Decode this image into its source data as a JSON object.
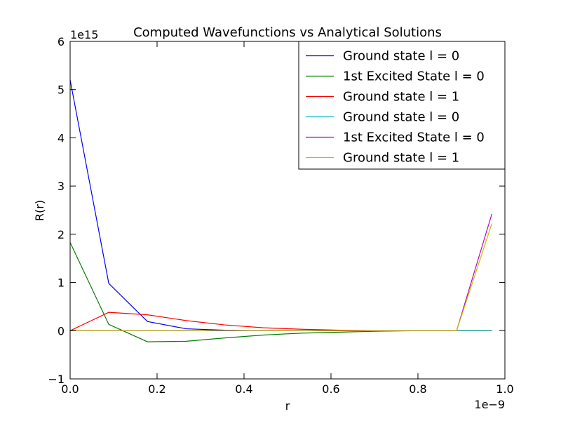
{
  "chart_data": {
    "type": "line",
    "title": "Computed Wavefunctions vs Analytical Solutions",
    "xlabel": "r",
    "ylabel": "R(r)",
    "x_offset_label": "1e−9",
    "y_offset_label": "1e15",
    "xlim": [
      0,
      1.0
    ],
    "ylim": [
      -1,
      6
    ],
    "x_ticks": [
      0.0,
      0.2,
      0.4,
      0.6,
      0.8,
      1.0
    ],
    "x_tick_labels": [
      "0.0",
      "0.2",
      "0.4",
      "0.6",
      "0.8",
      "1.0"
    ],
    "y_ticks": [
      -1,
      0,
      1,
      2,
      3,
      4,
      5,
      6
    ],
    "y_tick_labels": [
      "−1",
      "0",
      "1",
      "2",
      "3",
      "4",
      "5",
      "6"
    ],
    "grid": false,
    "legend_position": "top-right",
    "series": [
      {
        "name": "Ground state l = 0",
        "color": "#0000ff",
        "x": [
          0.0,
          0.0889,
          0.1778,
          0.2667,
          0.3556,
          0.4444,
          0.5333,
          0.6222,
          0.7111,
          0.8,
          0.8889,
          0.97
        ],
        "y": [
          5.2,
          0.98,
          0.19,
          0.04,
          0.01,
          0.0,
          0.0,
          0.0,
          0.0,
          0.0,
          0.0,
          0.0
        ]
      },
      {
        "name": "1st Excited State l = 0",
        "color": "#008000",
        "x": [
          0.0,
          0.0889,
          0.1778,
          0.2667,
          0.3556,
          0.4444,
          0.5333,
          0.6222,
          0.7111,
          0.8,
          0.8889,
          0.97
        ],
        "y": [
          1.83,
          0.13,
          -0.23,
          -0.22,
          -0.15,
          -0.09,
          -0.05,
          -0.03,
          -0.01,
          0.0,
          0.0,
          0.0
        ]
      },
      {
        "name": "Ground state l = 1",
        "color": "#ff0000",
        "x": [
          0.0,
          0.0889,
          0.1778,
          0.2667,
          0.3556,
          0.4444,
          0.5333,
          0.6222,
          0.7111,
          0.8,
          0.8889,
          0.97
        ],
        "y": [
          0.0,
          0.38,
          0.33,
          0.21,
          0.12,
          0.06,
          0.03,
          0.01,
          0.0,
          0.0,
          0.0,
          0.0
        ]
      },
      {
        "name": "Ground state l = 0",
        "color": "#00bfbf",
        "x": [
          0.0,
          0.0889,
          0.1778,
          0.2667,
          0.3556,
          0.4444,
          0.5333,
          0.6222,
          0.7111,
          0.8,
          0.8889,
          0.97
        ],
        "y": [
          0.0,
          0.0,
          0.0,
          0.0,
          0.0,
          0.0,
          0.0,
          0.0,
          0.0,
          0.0,
          0.0,
          0.0
        ]
      },
      {
        "name": "1st Excited State l = 0",
        "color": "#bf00bf",
        "x": [
          0.0,
          0.0889,
          0.1778,
          0.2667,
          0.3556,
          0.4444,
          0.5333,
          0.6222,
          0.7111,
          0.8,
          0.8889,
          0.97
        ],
        "y": [
          0.0,
          0.0,
          0.0,
          0.0,
          0.0,
          0.0,
          0.0,
          0.0,
          0.0,
          0.0,
          0.0,
          2.42
        ]
      },
      {
        "name": "Ground state l = 1",
        "color": "#bfbf00",
        "x": [
          0.0,
          0.0889,
          0.1778,
          0.2667,
          0.3556,
          0.4444,
          0.5333,
          0.6222,
          0.7111,
          0.8,
          0.8889,
          0.97
        ],
        "y": [
          0.0,
          0.0,
          0.0,
          0.0,
          0.0,
          0.0,
          0.0,
          0.0,
          0.0,
          0.0,
          0.0,
          2.22
        ]
      }
    ]
  }
}
